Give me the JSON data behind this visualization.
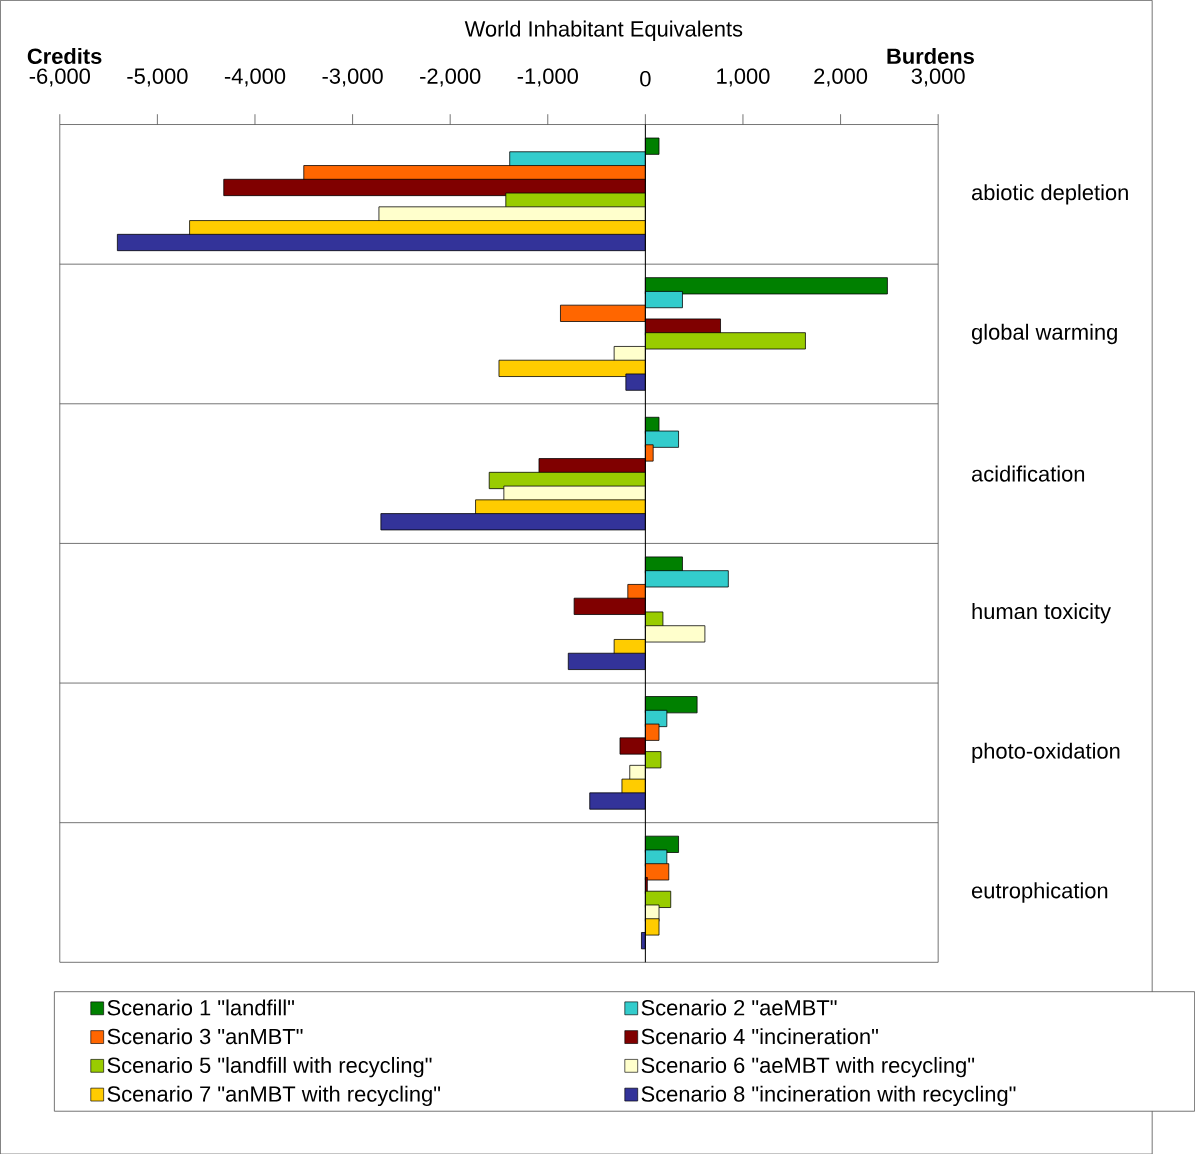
{
  "chart_data": {
    "type": "bar",
    "orientation": "horizontal",
    "title": "World Inhabitant Equivalents",
    "annotations": [
      "Credits",
      "Burdens"
    ],
    "categories": [
      "abiotic depletion",
      "global warming",
      "acidification",
      "human toxicity",
      "photo-oxidation",
      "eutrophication"
    ],
    "series": [
      {
        "name": "Scenario 1 \"landfill\"",
        "color": "#008000",
        "values": [
          140,
          2480,
          140,
          380,
          530,
          340
        ]
      },
      {
        "name": "Scenario 2 \"aeMBT\"",
        "color": "#33cccc",
        "values": [
          -1390,
          380,
          340,
          850,
          220,
          220
        ]
      },
      {
        "name": "Scenario 3 \"anMBT\"",
        "color": "#ff6600",
        "values": [
          -3500,
          -870,
          80,
          -180,
          140,
          240
        ]
      },
      {
        "name": "Scenario 4 \"incineration\"",
        "color": "#800000",
        "values": [
          -4320,
          770,
          -1090,
          -730,
          -260,
          20
        ]
      },
      {
        "name": "Scenario 5 \"landfill with recycling\"",
        "color": "#99cc00",
        "values": [
          -1430,
          1640,
          -1600,
          180,
          160,
          260
        ]
      },
      {
        "name": "Scenario 6 \"aeMBT with recycling\"",
        "color": "#ffffcc",
        "values": [
          -2730,
          -320,
          -1450,
          610,
          -160,
          140
        ]
      },
      {
        "name": "Scenario 7 \"anMBT with recycling\"",
        "color": "#ffcc00",
        "values": [
          -4670,
          -1500,
          -1740,
          -320,
          -240,
          140
        ]
      },
      {
        "name": "Scenario 8 \"incineration with recycling\"",
        "color": "#333399",
        "values": [
          -5410,
          -200,
          -2710,
          -790,
          -570,
          -40
        ]
      }
    ],
    "xlim": [
      -6000,
      3000
    ],
    "xticks": [
      {
        "value": -6000,
        "label": "-6,000"
      },
      {
        "value": -5000,
        "label": "-5,000"
      },
      {
        "value": -4000,
        "label": "-4,000"
      },
      {
        "value": -3000,
        "label": "-3,000"
      },
      {
        "value": -2000,
        "label": "-2,000"
      },
      {
        "value": -1000,
        "label": "-1,000"
      },
      0,
      {
        "value": 1000,
        "label": "1,000"
      },
      {
        "value": 2000,
        "label": "2,000"
      },
      {
        "value": 3000,
        "label": "3,000"
      }
    ],
    "grid": "y",
    "legend": "bottom"
  }
}
